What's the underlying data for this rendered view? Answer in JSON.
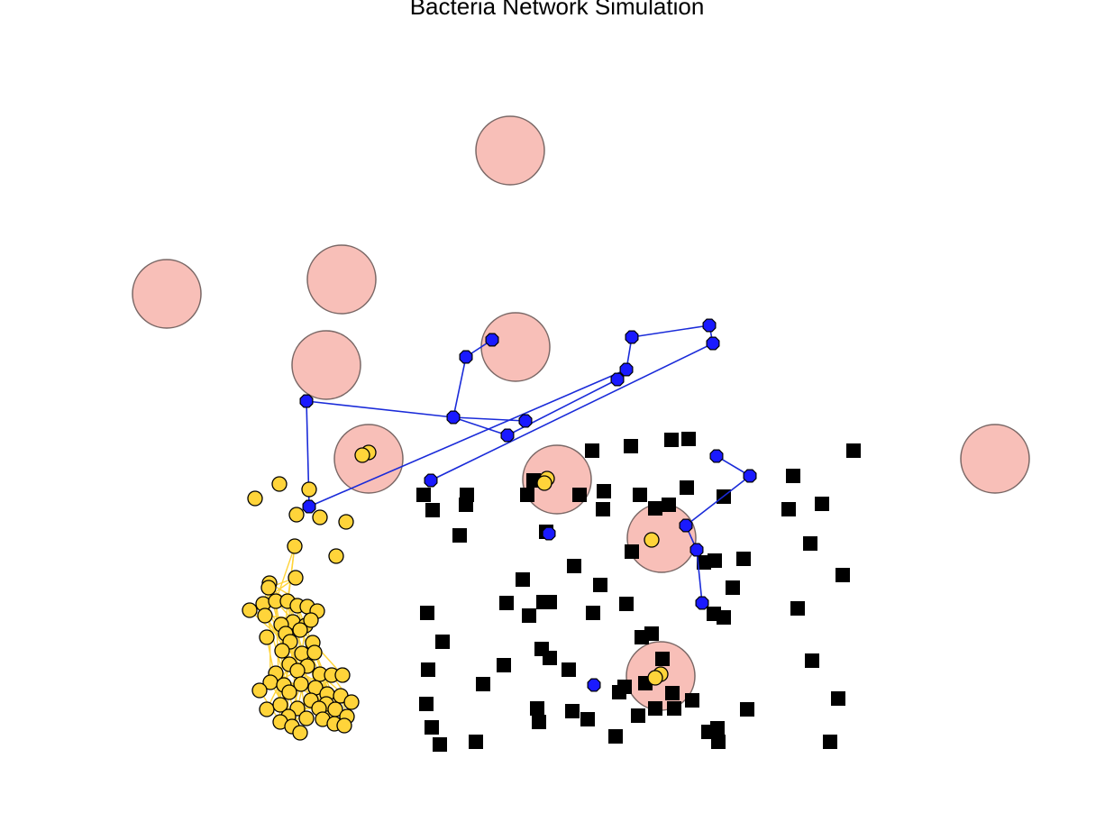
{
  "title": "Bacteria Network Simulation",
  "colors": {
    "background": "#ffffff",
    "food": "#f8bfb8",
    "food_stroke": "#7a6866",
    "blue_node": "#1a1aff",
    "blue_edge": "#1a2bd9",
    "yellow_node": "#ffd43a",
    "yellow_edge": "#ffd43a",
    "obstacle": "#000000",
    "node_stroke": "#000000"
  },
  "legend": "none",
  "network": {
    "food_sources": [
      [
        566,
        167
      ],
      [
        185,
        326
      ],
      [
        379,
        310
      ],
      [
        572,
        385
      ],
      [
        362,
        405
      ],
      [
        409,
        509
      ],
      [
        618,
        532
      ],
      [
        734,
        597
      ],
      [
        733,
        750
      ],
      [
        1104,
        509
      ]
    ],
    "obstacles": [
      [
        657,
        500
      ],
      [
        700,
        495
      ],
      [
        745,
        488
      ],
      [
        764,
        487
      ],
      [
        947,
        500
      ],
      [
        880,
        528
      ],
      [
        912,
        559
      ],
      [
        875,
        565
      ],
      [
        470,
        549
      ],
      [
        518,
        549
      ],
      [
        517,
        560
      ],
      [
        480,
        566
      ],
      [
        592,
        533
      ],
      [
        585,
        549
      ],
      [
        643,
        549
      ],
      [
        670,
        545
      ],
      [
        669,
        565
      ],
      [
        710,
        549
      ],
      [
        727,
        564
      ],
      [
        742,
        560
      ],
      [
        762,
        541
      ],
      [
        803,
        551
      ],
      [
        510,
        594
      ],
      [
        606,
        590
      ],
      [
        899,
        603
      ],
      [
        701,
        612
      ],
      [
        781,
        624
      ],
      [
        793,
        622
      ],
      [
        825,
        620
      ],
      [
        935,
        638
      ],
      [
        580,
        643
      ],
      [
        637,
        628
      ],
      [
        666,
        649
      ],
      [
        813,
        652
      ],
      [
        562,
        669
      ],
      [
        603,
        668
      ],
      [
        610,
        668
      ],
      [
        587,
        683
      ],
      [
        658,
        680
      ],
      [
        695,
        670
      ],
      [
        885,
        675
      ],
      [
        792,
        681
      ],
      [
        803,
        685
      ],
      [
        474,
        680
      ],
      [
        491,
        712
      ],
      [
        712,
        707
      ],
      [
        723,
        703
      ],
      [
        601,
        720
      ],
      [
        610,
        730
      ],
      [
        735,
        731
      ],
      [
        475,
        743
      ],
      [
        559,
        738
      ],
      [
        631,
        743
      ],
      [
        901,
        733
      ],
      [
        536,
        759
      ],
      [
        687,
        768
      ],
      [
        693,
        762
      ],
      [
        716,
        758
      ],
      [
        746,
        769
      ],
      [
        768,
        777
      ],
      [
        930,
        775
      ],
      [
        473,
        781
      ],
      [
        596,
        786
      ],
      [
        635,
        789
      ],
      [
        652,
        798
      ],
      [
        598,
        801
      ],
      [
        708,
        794
      ],
      [
        727,
        786
      ],
      [
        748,
        786
      ],
      [
        829,
        787
      ],
      [
        479,
        807
      ],
      [
        786,
        812
      ],
      [
        796,
        808
      ],
      [
        488,
        826
      ],
      [
        528,
        823
      ],
      [
        683,
        817
      ],
      [
        797,
        823
      ],
      [
        921,
        823
      ]
    ],
    "blue_nodes": [
      [
        546,
        377
      ],
      [
        517,
        396
      ],
      [
        701,
        374
      ],
      [
        787,
        361
      ],
      [
        791,
        381
      ],
      [
        695,
        410
      ],
      [
        685,
        421
      ],
      [
        340,
        445
      ],
      [
        503,
        463
      ],
      [
        583,
        467
      ],
      [
        563,
        483
      ],
      [
        478,
        533
      ],
      [
        343,
        562
      ],
      [
        795,
        506
      ],
      [
        832,
        528
      ],
      [
        761,
        583
      ],
      [
        773,
        610
      ],
      [
        779,
        669
      ],
      [
        659,
        760
      ],
      [
        609,
        592
      ]
    ],
    "blue_edges": [
      [
        0,
        1
      ],
      [
        1,
        8
      ],
      [
        7,
        8
      ],
      [
        8,
        9
      ],
      [
        8,
        10
      ],
      [
        10,
        6
      ],
      [
        6,
        5
      ],
      [
        5,
        2
      ],
      [
        2,
        3
      ],
      [
        3,
        4
      ],
      [
        4,
        11
      ],
      [
        7,
        12
      ],
      [
        12,
        5
      ],
      [
        13,
        14
      ],
      [
        14,
        15
      ],
      [
        15,
        16
      ],
      [
        16,
        17
      ]
    ],
    "yellow_nodes": [
      [
        409,
        502
      ],
      [
        402,
        505
      ],
      [
        607,
        531
      ],
      [
        604,
        536
      ],
      [
        723,
        599
      ],
      [
        733,
        748
      ],
      [
        727,
        752
      ],
      [
        310,
        537
      ],
      [
        283,
        553
      ],
      [
        343,
        543
      ],
      [
        329,
        571
      ],
      [
        355,
        574
      ],
      [
        384,
        579
      ],
      [
        373,
        617
      ],
      [
        327,
        606
      ],
      [
        328,
        641
      ],
      [
        299,
        647
      ],
      [
        298,
        652
      ],
      [
        277,
        677
      ],
      [
        292,
        670
      ],
      [
        294,
        683
      ],
      [
        306,
        667
      ],
      [
        319,
        667
      ],
      [
        330,
        672
      ],
      [
        341,
        673
      ],
      [
        352,
        678
      ],
      [
        325,
        690
      ],
      [
        312,
        693
      ],
      [
        339,
        694
      ],
      [
        317,
        703
      ],
      [
        296,
        707
      ],
      [
        322,
        712
      ],
      [
        347,
        713
      ],
      [
        313,
        722
      ],
      [
        335,
        725
      ],
      [
        349,
        724
      ],
      [
        321,
        737
      ],
      [
        341,
        739
      ],
      [
        306,
        747
      ],
      [
        330,
        744
      ],
      [
        355,
        748
      ],
      [
        368,
        749
      ],
      [
        380,
        749
      ],
      [
        300,
        757
      ],
      [
        315,
        760
      ],
      [
        334,
        759
      ],
      [
        350,
        763
      ],
      [
        363,
        770
      ],
      [
        378,
        772
      ],
      [
        390,
        779
      ],
      [
        288,
        766
      ],
      [
        321,
        768
      ],
      [
        345,
        777
      ],
      [
        362,
        781
      ],
      [
        296,
        787
      ],
      [
        311,
        782
      ],
      [
        330,
        786
      ],
      [
        354,
        786
      ],
      [
        372,
        787
      ],
      [
        385,
        795
      ],
      [
        320,
        795
      ],
      [
        340,
        797
      ],
      [
        358,
        798
      ],
      [
        311,
        801
      ],
      [
        324,
        806
      ],
      [
        333,
        813
      ],
      [
        371,
        803
      ],
      [
        382,
        805
      ],
      [
        345,
        688
      ],
      [
        333,
        699
      ]
    ],
    "yellow_edges": [
      [
        7,
        15
      ],
      [
        7,
        14
      ],
      [
        8,
        10
      ],
      [
        9,
        12
      ],
      [
        9,
        13
      ],
      [
        10,
        16
      ],
      [
        11,
        13
      ],
      [
        12,
        27
      ],
      [
        13,
        32
      ],
      [
        14,
        35
      ],
      [
        15,
        30
      ],
      [
        16,
        38
      ],
      [
        8,
        11
      ],
      [
        10,
        14
      ],
      [
        11,
        15
      ],
      [
        12,
        17
      ],
      [
        9,
        18
      ],
      [
        7,
        26
      ],
      [
        14,
        44
      ],
      [
        15,
        51
      ],
      [
        16,
        55
      ],
      [
        13,
        46
      ],
      [
        12,
        58
      ],
      [
        11,
        42
      ],
      [
        9,
        36
      ],
      [
        10,
        29
      ],
      [
        13,
        61
      ],
      [
        12,
        66
      ],
      [
        16,
        67
      ],
      [
        15,
        54
      ],
      [
        14,
        63
      ],
      [
        20,
        40
      ],
      [
        22,
        45
      ],
      [
        24,
        49
      ],
      [
        28,
        53
      ],
      [
        31,
        57
      ],
      [
        33,
        60
      ],
      [
        34,
        64
      ],
      [
        36,
        65
      ],
      [
        37,
        62
      ],
      [
        39,
        59
      ],
      [
        41,
        52
      ],
      [
        43,
        56
      ],
      [
        47,
        50
      ],
      [
        48,
        23
      ],
      [
        25,
        49
      ],
      [
        26,
        48
      ],
      [
        29,
        47
      ],
      [
        30,
        43
      ],
      [
        32,
        41
      ],
      [
        35,
        39
      ],
      [
        38,
        37
      ],
      [
        42,
        34
      ],
      [
        44,
        33
      ],
      [
        46,
        31
      ],
      [
        51,
        28
      ],
      [
        52,
        24
      ],
      [
        53,
        22
      ],
      [
        57,
        21
      ]
    ]
  }
}
